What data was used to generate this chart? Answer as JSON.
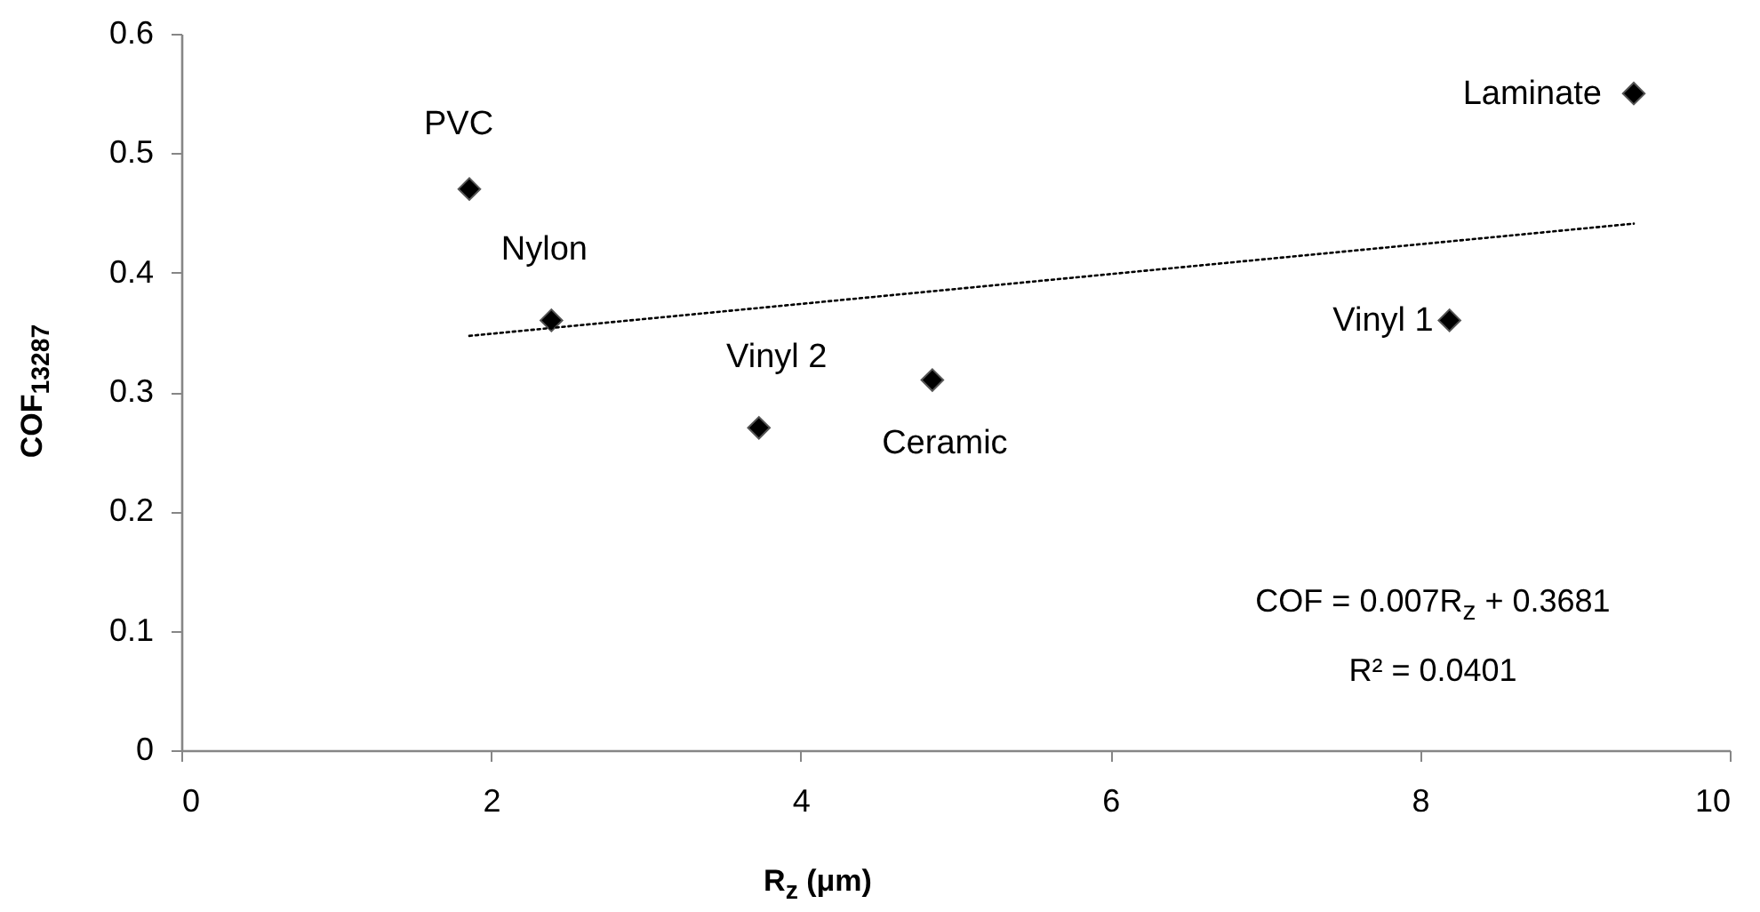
{
  "chart_data": {
    "type": "scatter",
    "xlabel": "R$_{z}$ (μm)",
    "ylabel": "COF$_{13287}$",
    "xlim": [
      0,
      10
    ],
    "xticks": [
      0,
      2,
      4,
      6,
      8,
      10
    ],
    "ylim": [
      0,
      0.6
    ],
    "yticks": [
      0,
      0.1,
      0.2,
      0.3,
      0.4,
      0.5,
      0.6
    ],
    "grid": false,
    "series": [
      {
        "marker": "diamond",
        "color": "#000000",
        "x": [
          1.86,
          2.39,
          3.73,
          4.85,
          8.19,
          9.38
        ],
        "values": [
          0.47,
          0.36,
          0.27,
          0.31,
          0.36,
          0.55
        ]
      },
      {
        "type": "line",
        "color": "#000000",
        "line_style": "dotted",
        "x": [
          1.86,
          9.38
        ],
        "values": [
          0.347,
          0.441
        ]
      }
    ],
    "annotations": [
      {
        "text": "PVC",
        "x": 1.86,
        "y": 0.47
      },
      {
        "text": "Nylon",
        "x": 2.39,
        "y": 0.36
      },
      {
        "text": "Vinyl  2",
        "x": 3.73,
        "y": 0.27
      },
      {
        "text": "Ceramic",
        "x": 4.85,
        "y": 0.31
      },
      {
        "text": "Vinyl  1",
        "x": 8.19,
        "y": 0.36
      },
      {
        "text": "Laminate",
        "x": 9.38,
        "y": 0.55
      },
      "COF = 0.007R$_{z}$ + 0.3681",
      "R² = 0.0401"
    ]
  }
}
